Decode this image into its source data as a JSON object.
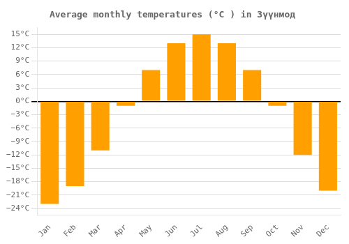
{
  "chart_data": {
    "type": "bar",
    "title": "Average monthly temperatures (°C ) in Зүүнмод",
    "categories": [
      "Jan",
      "Feb",
      "Mar",
      "Apr",
      "May",
      "Jun",
      "Jul",
      "Aug",
      "Sep",
      "Oct",
      "Nov",
      "Dec"
    ],
    "values": [
      -23,
      -19,
      -11,
      -1,
      7,
      13,
      15,
      13,
      7,
      -1,
      -12,
      -20
    ],
    "color": "#FFA000",
    "ylim": [
      -25.5,
      16.5
    ],
    "yticks": [
      {
        "value": -24,
        "label": "−24°C"
      },
      {
        "value": -21,
        "label": "−21°C"
      },
      {
        "value": -18,
        "label": "−18°C"
      },
      {
        "value": -15,
        "label": "−15°C"
      },
      {
        "value": -12,
        "label": "−12°C"
      },
      {
        "value": -9,
        "label": "−9°C"
      },
      {
        "value": -6,
        "label": "−6°C"
      },
      {
        "value": -3,
        "label": "−3°C"
      },
      {
        "value": 0,
        "label": "0°C"
      },
      {
        "value": 3,
        "label": "3°C"
      },
      {
        "value": 6,
        "label": "6°C"
      },
      {
        "value": 9,
        "label": "9°C"
      },
      {
        "value": 12,
        "label": "12°C"
      },
      {
        "value": 15,
        "label": "15°C"
      }
    ],
    "grid": true
  }
}
